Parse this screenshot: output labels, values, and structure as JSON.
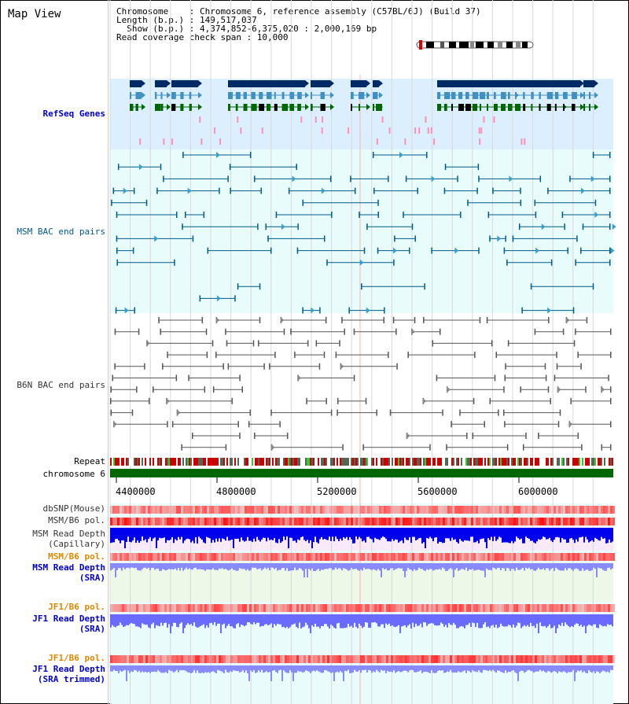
{
  "title": "Map View",
  "info": {
    "line1": "Chromosome    : Chromosome 6, reference assembly (C57BL/6J) (Build 37)",
    "line2": "Length (b.p.) : 149,517,037",
    "line3": "  Show (b.p.) : 4,374,852-6,375,020 : 2,000,169 bp",
    "line4": "Read coverage check span : 10,000"
  },
  "tracks": {
    "refseq": "RefSeq Genes",
    "msm_bac": "MSM BAC end pairs",
    "b6n_bac": "B6N BAC end pairs",
    "repeat": "Repeat",
    "chromosome": "chromosome 6",
    "dbsnp": "dbSNP(Mouse)",
    "msm_b6_pol": "MSM/B6 pol.",
    "msm_depth_cap_1": "MSM Read Depth",
    "msm_depth_cap_2": "(Capillary)",
    "msm_b6_pol2": "MSM/B6 pol.",
    "msm_depth_sra_1": "MSM Read Depth",
    "msm_depth_sra_2": "(SRA)",
    "jf1_pol": "JF1/B6 pol.",
    "jf1_depth_1": "JF1 Read Depth",
    "jf1_depth_2": "(SRA)",
    "jf1_pol2": "JF1/B6 pol.",
    "jf1_depth_t_1": "JF1 Read Depth",
    "jf1_depth_t_2": "(SRA trimmed)"
  },
  "axis_ticks": [
    "4400000",
    "4800000",
    "5200000",
    "5600000",
    "6000000"
  ],
  "colors": {
    "refseq_bg": "#dcefff",
    "msm_bg": "#e8fcfc",
    "b6n_bg": "#ffffff",
    "gene_navy": "#002a66",
    "gene_teal": "#4090c0",
    "gene_green": "#006600",
    "msm_line": "#005a87",
    "b6n_line": "#555555",
    "chromosome": "#006600",
    "pol_red": "#ff2020",
    "depth_blue": "#0000ee",
    "depth_lilac": "#8a8aff"
  }
}
